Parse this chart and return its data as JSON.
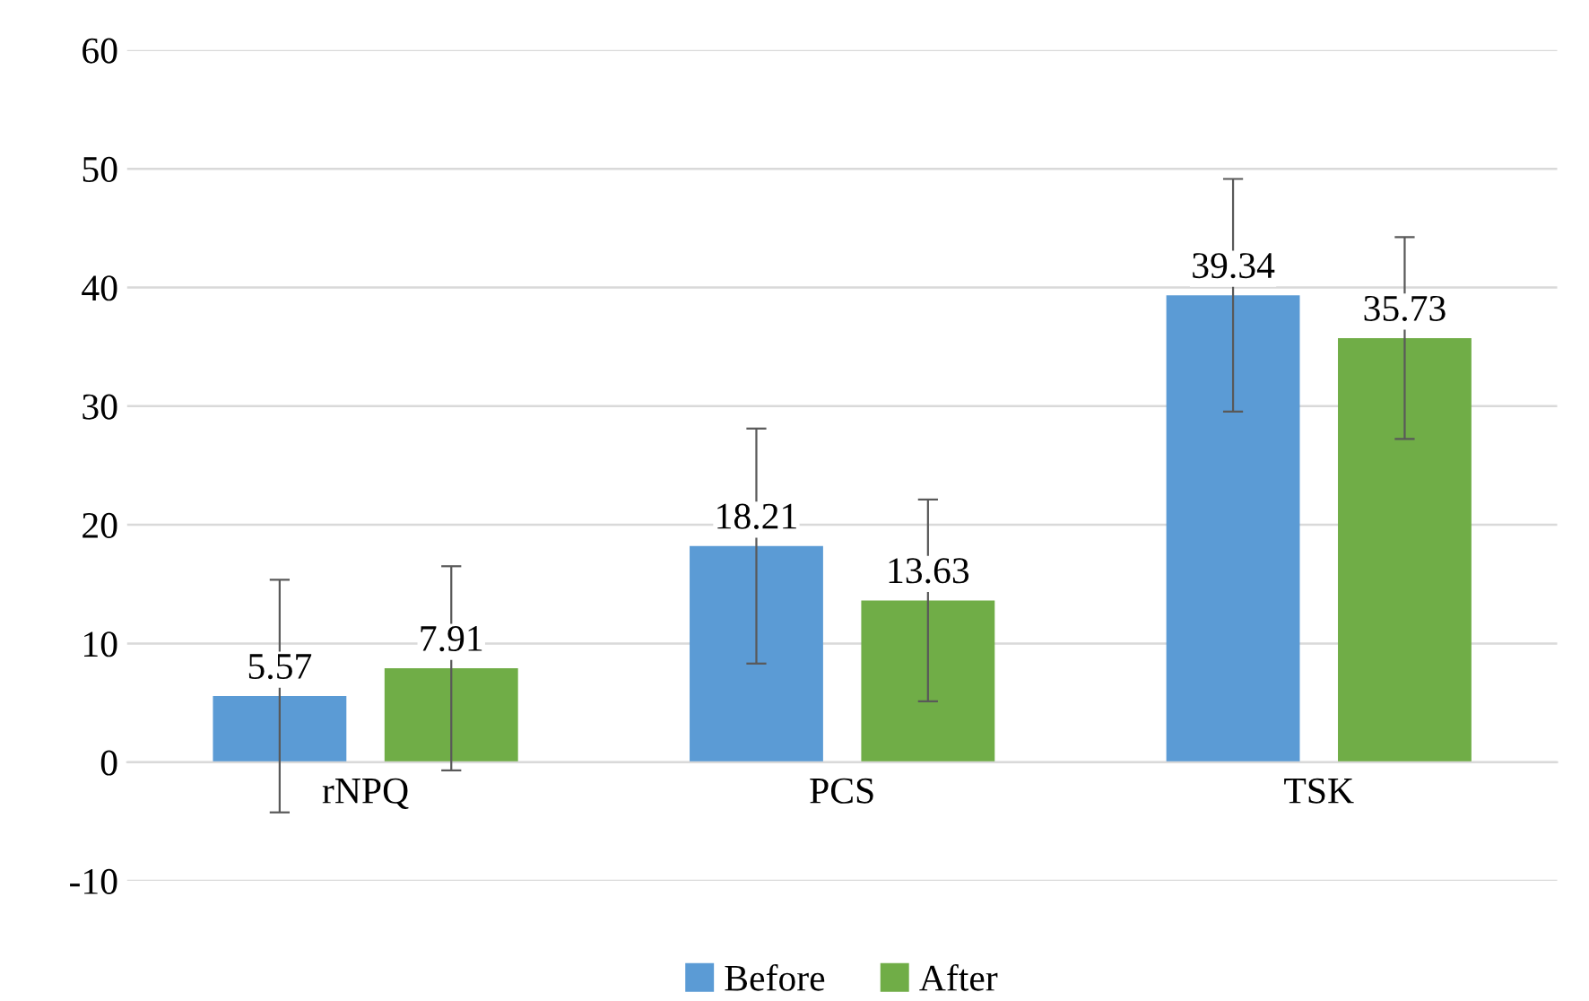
{
  "chart_data": {
    "type": "bar",
    "categories": [
      "rNPQ",
      "PCS",
      "TSK"
    ],
    "series": [
      {
        "name": "Before",
        "color": "#5b9bd5",
        "values": [
          5.57,
          18.21,
          39.34
        ],
        "errors": [
          9.8,
          9.9,
          9.8
        ]
      },
      {
        "name": "After",
        "color": "#70ad47",
        "values": [
          7.91,
          13.63,
          35.73
        ],
        "errors": [
          8.6,
          8.5,
          8.5
        ]
      }
    ],
    "ylim": [
      -10,
      60
    ],
    "yticks": [
      -10,
      0,
      10,
      20,
      30,
      40,
      50,
      60
    ],
    "grid": "y",
    "legend": "bottom",
    "data_labels": true
  }
}
